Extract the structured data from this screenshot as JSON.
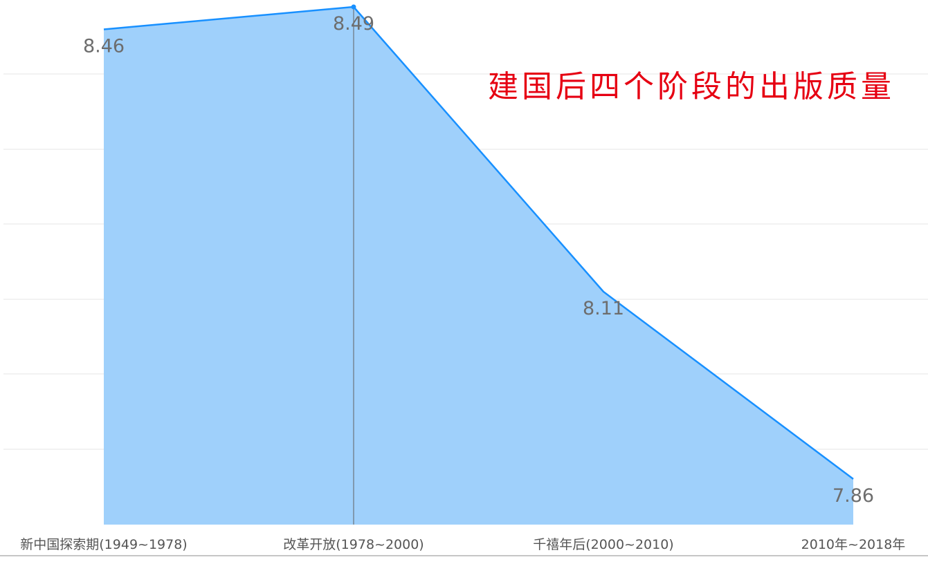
{
  "chart_data": {
    "type": "area",
    "title": "建国后四个阶段的出版质量",
    "title_color": "#e60012",
    "categories": [
      "新中国探索期(1949~1978)",
      "改革开放(1978~2000)",
      "千禧年后(2000~2010)",
      "2010年~2018年"
    ],
    "series": [
      {
        "values": [
          8.46,
          8.49,
          8.11,
          7.86
        ],
        "labels": [
          "8.46",
          "8.49",
          "8.11",
          "7.86"
        ],
        "color": "#1890ff",
        "fill_color": "#9fd0fb"
      }
    ],
    "ylim": [
      7.8,
      8.5
    ],
    "grid": true,
    "highlighted_category": "改革开放(1978~2000)",
    "xlabel": "",
    "ylabel": ""
  }
}
